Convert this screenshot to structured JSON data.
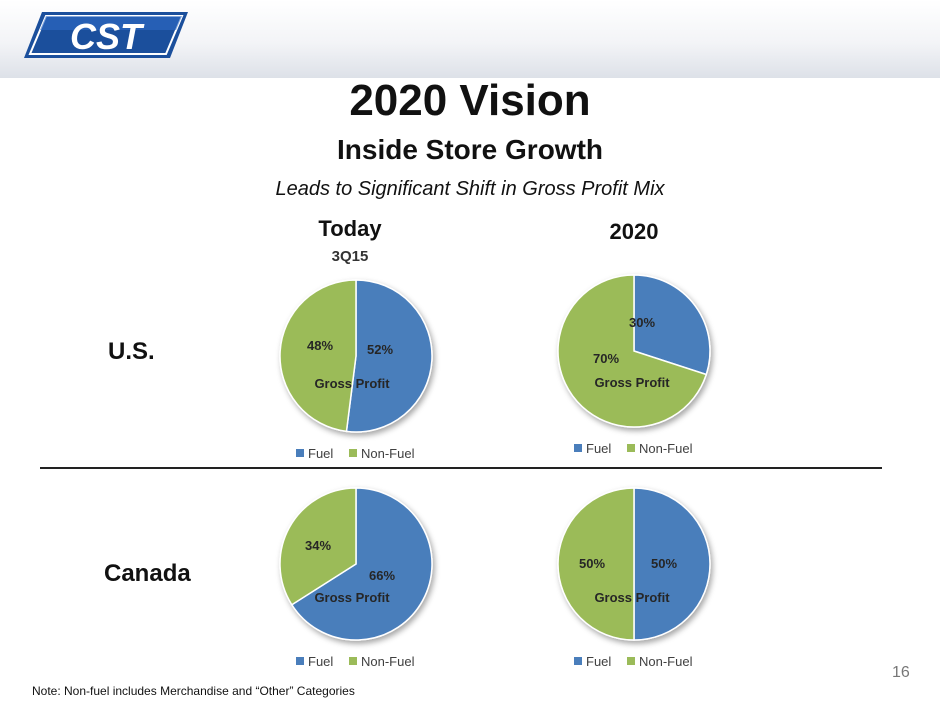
{
  "logo": {
    "text": "CST"
  },
  "title": "2020 Vision",
  "subtitle": "Inside Store Growth",
  "tagline": "Leads to Significant Shift in Gross Profit Mix",
  "columns": {
    "today": "Today",
    "today_sub": "3Q15",
    "future": "2020"
  },
  "rows": {
    "us": "U.S.",
    "canada": "Canada"
  },
  "note": "Note: Non-fuel includes Merchandise and “Other” Categories",
  "page_number": "16",
  "colors": {
    "fuel": "#4a7ebb",
    "non_fuel": "#9bbb59"
  },
  "chart_data": [
    {
      "type": "pie",
      "row": "U.S.",
      "column": "Today",
      "inner_label": "Gross Profit",
      "categories": [
        "Fuel",
        "Non-Fuel"
      ],
      "values": [
        52,
        48
      ],
      "data_labels": [
        "52%",
        "48%"
      ],
      "legend": "bottom"
    },
    {
      "type": "pie",
      "row": "U.S.",
      "column": "2020",
      "inner_label": "Gross Profit",
      "categories": [
        "Fuel",
        "Non-Fuel"
      ],
      "values": [
        30,
        70
      ],
      "data_labels": [
        "30%",
        "70%"
      ],
      "legend": "bottom"
    },
    {
      "type": "pie",
      "row": "Canada",
      "column": "Today",
      "inner_label": "Gross Profit",
      "categories": [
        "Fuel",
        "Non-Fuel"
      ],
      "values": [
        66,
        34
      ],
      "data_labels": [
        "66%",
        "34%"
      ],
      "legend": "bottom"
    },
    {
      "type": "pie",
      "row": "Canada",
      "column": "2020",
      "inner_label": "Gross Profit",
      "categories": [
        "Fuel",
        "Non-Fuel"
      ],
      "values": [
        50,
        50
      ],
      "data_labels": [
        "50%",
        "50%"
      ],
      "legend": "bottom"
    }
  ]
}
